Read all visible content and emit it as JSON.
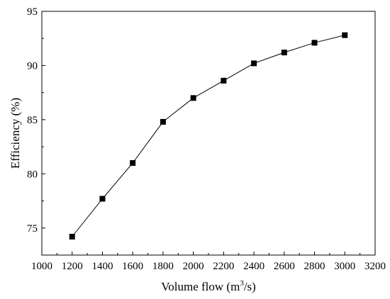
{
  "chart_data": {
    "type": "line",
    "title": "",
    "xlabel": "Volume flow (m",
    "xlabel_sup": "3",
    "xlabel_tail": "/s)",
    "ylabel": "Efficiency (%)",
    "xlim": [
      1000,
      3200
    ],
    "ylim": [
      72.5,
      95
    ],
    "x_ticks": [
      1000,
      1200,
      1400,
      1600,
      1800,
      2000,
      2200,
      2400,
      2600,
      2800,
      3000,
      3200
    ],
    "y_ticks": [
      75,
      80,
      85,
      90,
      95
    ],
    "grid": false,
    "series": [
      {
        "marker": "square",
        "color": "#000000",
        "x": [
          1200,
          1400,
          1600,
          1800,
          2000,
          2200,
          2400,
          2600,
          2800,
          3000
        ],
        "y": [
          74.2,
          77.7,
          81.0,
          84.8,
          87.0,
          88.6,
          90.2,
          91.2,
          92.1,
          92.8
        ]
      }
    ]
  }
}
